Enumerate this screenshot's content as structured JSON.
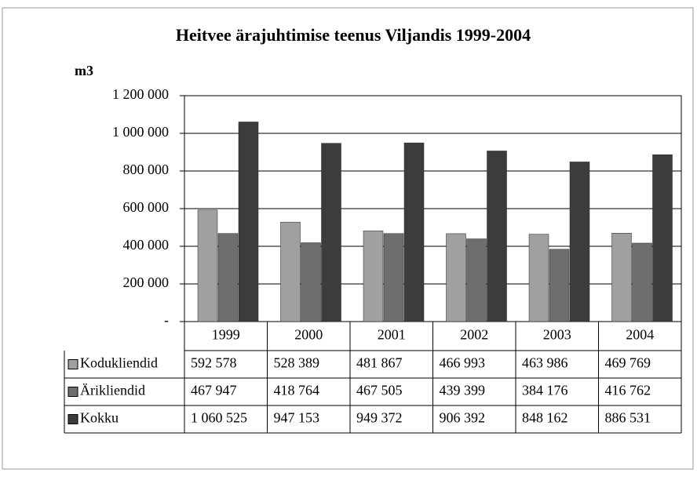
{
  "chart_data": {
    "type": "bar",
    "title": "Heitvee ärajuhtimise teenus Viljandis 1999-2004",
    "y_label": "m3",
    "categories": [
      "1999",
      "2000",
      "2001",
      "2002",
      "2003",
      "2004"
    ],
    "series": [
      {
        "name": "Kodukliendid",
        "color": "#a0a0a0",
        "values": [
          592578,
          528389,
          481867,
          466993,
          463986,
          469769
        ],
        "value_labels": [
          "592 578",
          "528 389",
          "481 867",
          "466 993",
          "463 986",
          "469 769"
        ]
      },
      {
        "name": "Ärikliendid",
        "color": "#6e6e6e",
        "values": [
          467947,
          418764,
          467505,
          439399,
          384176,
          416762
        ],
        "value_labels": [
          "467 947",
          "418 764",
          "467 505",
          "439 399",
          "384 176",
          "416 762"
        ]
      },
      {
        "name": "Kokku",
        "color": "#3c3c3c",
        "values": [
          1060525,
          947153,
          949372,
          906392,
          848162,
          886531
        ],
        "value_labels": [
          "1 060 525",
          "947 153",
          "949 372",
          "906 392",
          "848 162",
          "886 531"
        ]
      }
    ],
    "ylim": [
      0,
      1200000
    ],
    "yticks": [
      {
        "value": 0,
        "label": "-"
      },
      {
        "value": 200000,
        "label": "200 000"
      },
      {
        "value": 400000,
        "label": "400 000"
      },
      {
        "value": 600000,
        "label": "600 000"
      },
      {
        "value": 800000,
        "label": "800 000"
      },
      {
        "value": 1000000,
        "label": "1 000 000"
      },
      {
        "value": 1200000,
        "label": "1 200 000"
      }
    ],
    "grid": true
  }
}
